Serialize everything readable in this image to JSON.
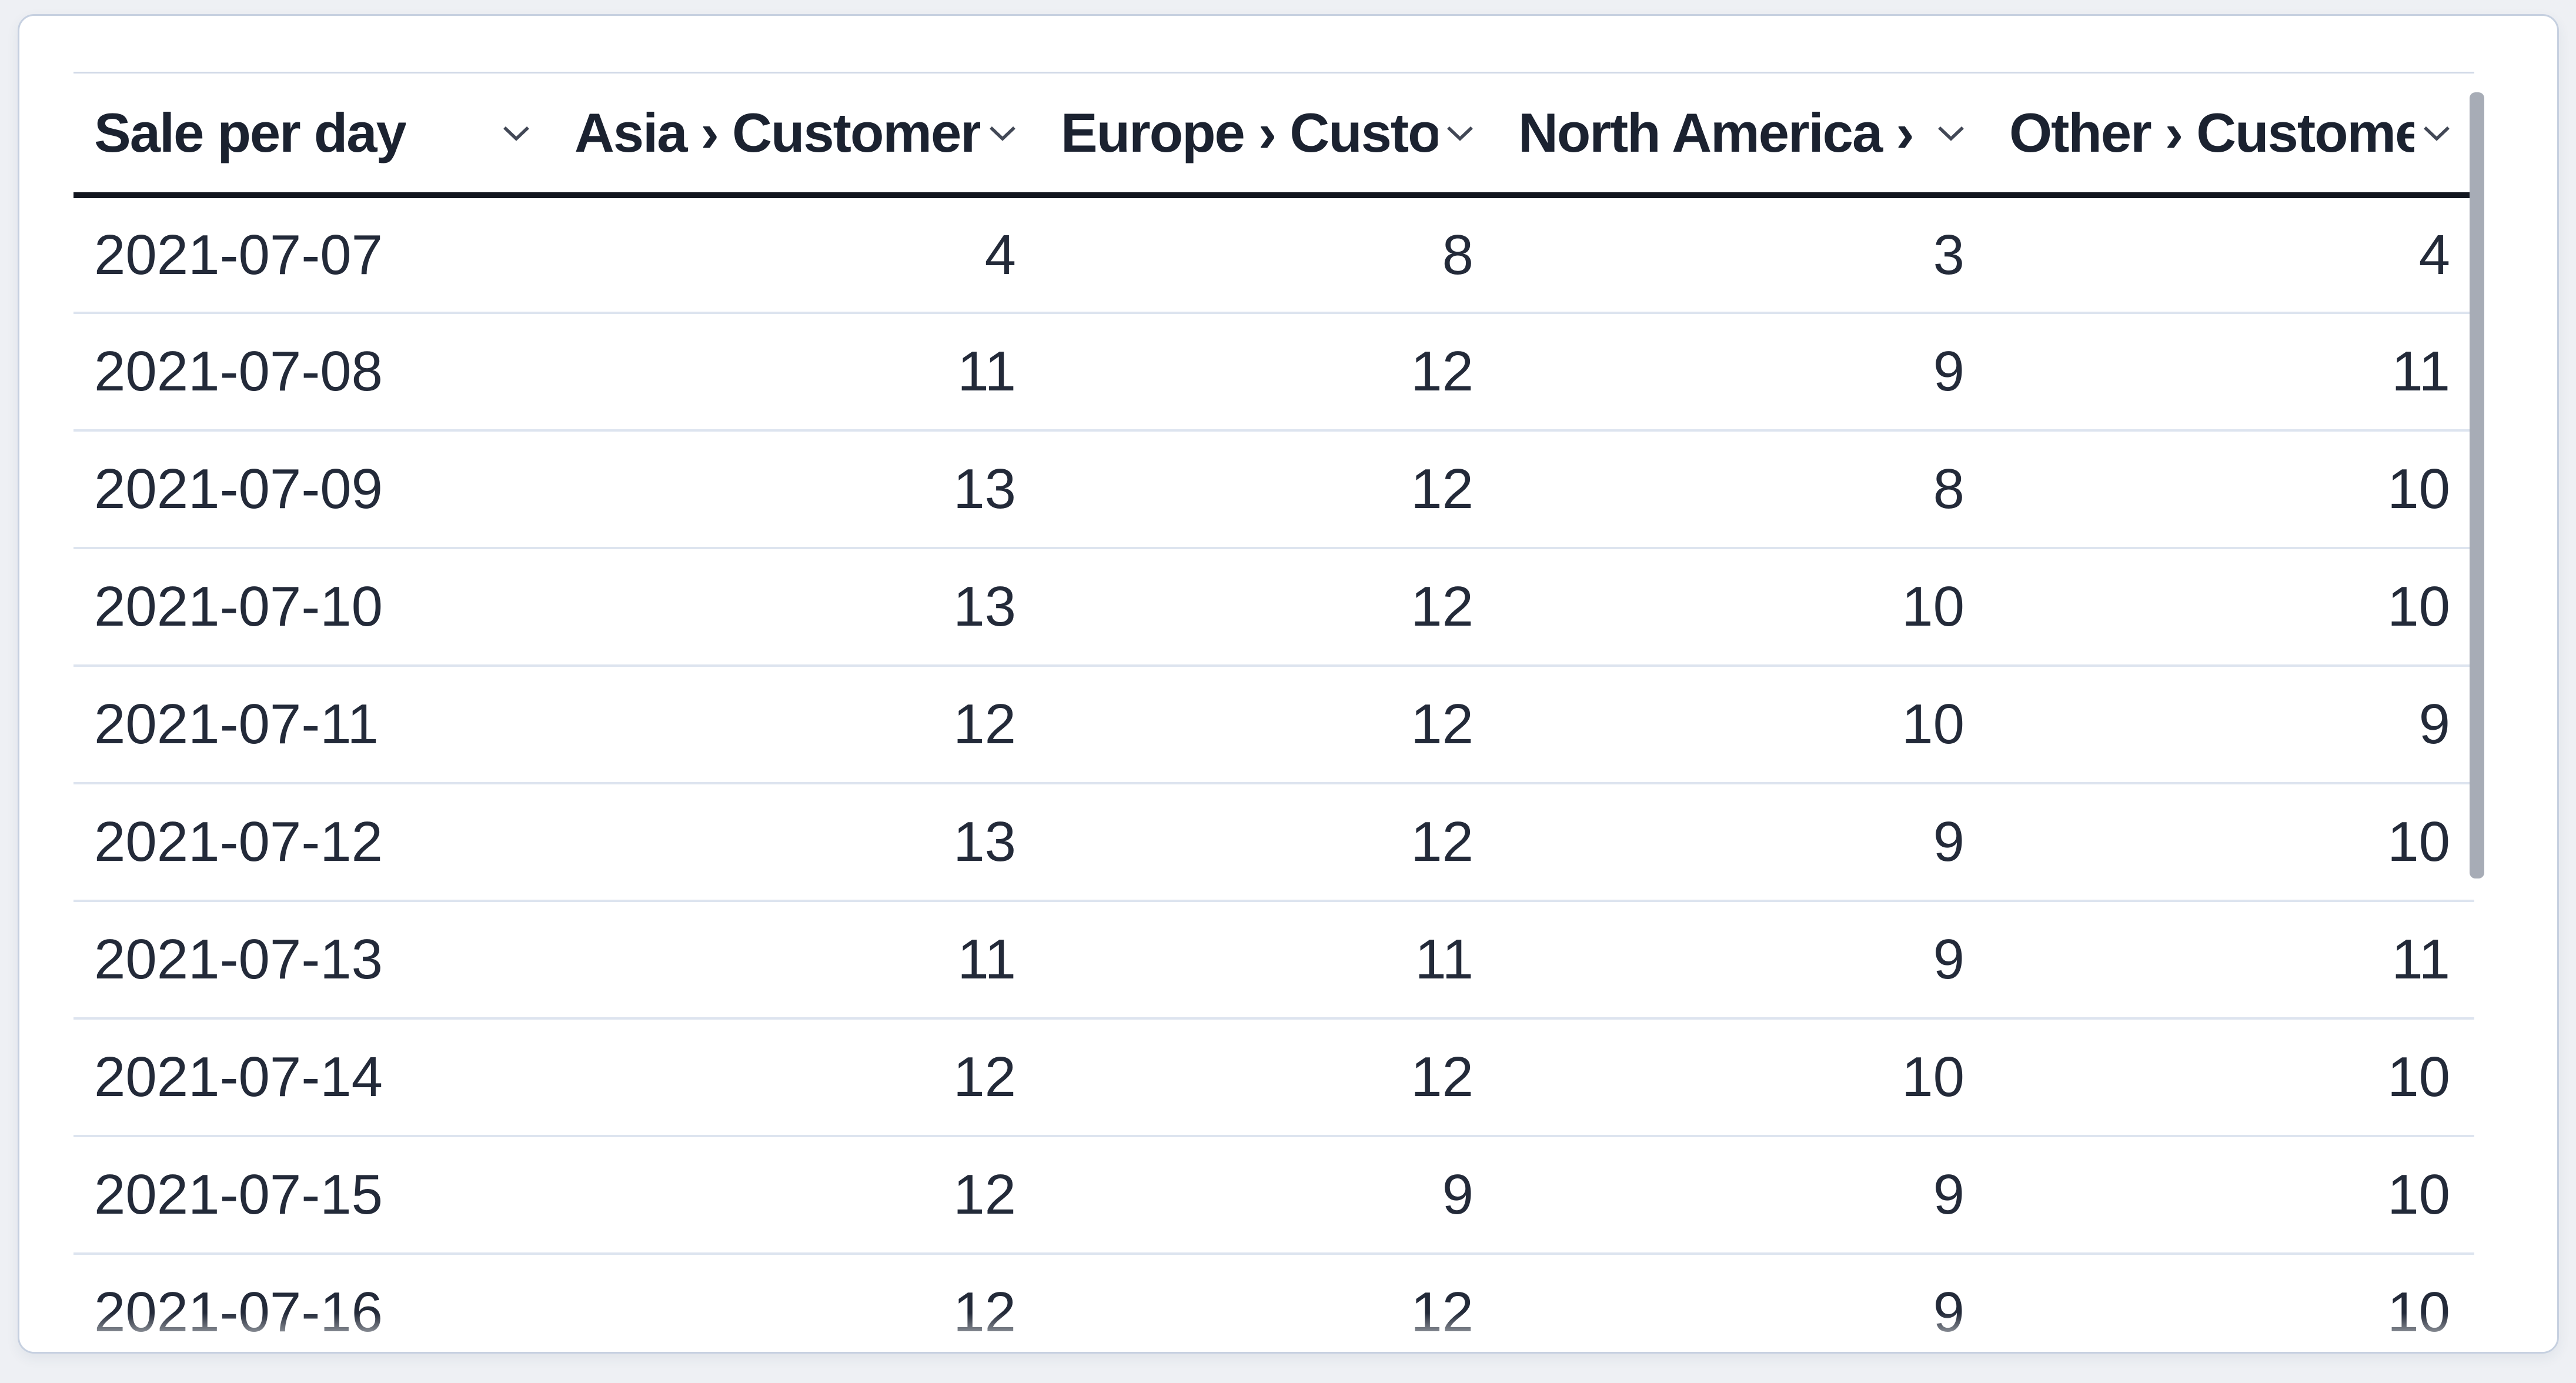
{
  "table": {
    "columns": [
      {
        "label": "Sale per day",
        "align": "left"
      },
      {
        "label": "Asia › Customers",
        "align": "right"
      },
      {
        "label": "Europe › Customers",
        "align": "right"
      },
      {
        "label": "North America › Customers",
        "align": "right"
      },
      {
        "label": "Other › Customers",
        "align": "right"
      }
    ],
    "sort_icon": "chevron-down",
    "rows": [
      [
        "2021-07-07",
        "4",
        "8",
        "3",
        "4"
      ],
      [
        "2021-07-08",
        "11",
        "12",
        "9",
        "11"
      ],
      [
        "2021-07-09",
        "13",
        "12",
        "8",
        "10"
      ],
      [
        "2021-07-10",
        "13",
        "12",
        "10",
        "10"
      ],
      [
        "2021-07-11",
        "12",
        "12",
        "10",
        "9"
      ],
      [
        "2021-07-12",
        "13",
        "12",
        "9",
        "10"
      ],
      [
        "2021-07-13",
        "11",
        "11",
        "9",
        "11"
      ],
      [
        "2021-07-14",
        "12",
        "12",
        "10",
        "10"
      ],
      [
        "2021-07-15",
        "12",
        "9",
        "9",
        "10"
      ],
      [
        "2021-07-16",
        "12",
        "12",
        "9",
        "10"
      ]
    ]
  },
  "scrollbar": {
    "orientation": "vertical",
    "visible": true
  },
  "colors": {
    "page_background": "#eef0f4",
    "card_background": "#ffffff",
    "card_border": "#c6d0e0",
    "table_top_border": "#d2dae7",
    "header_underline": "#12161f",
    "row_divider": "#dde4ef",
    "header_text": "#1b2230",
    "body_text": "#232a39",
    "chevron": "#424856",
    "scrollbar_thumb": "#a7acb6"
  }
}
